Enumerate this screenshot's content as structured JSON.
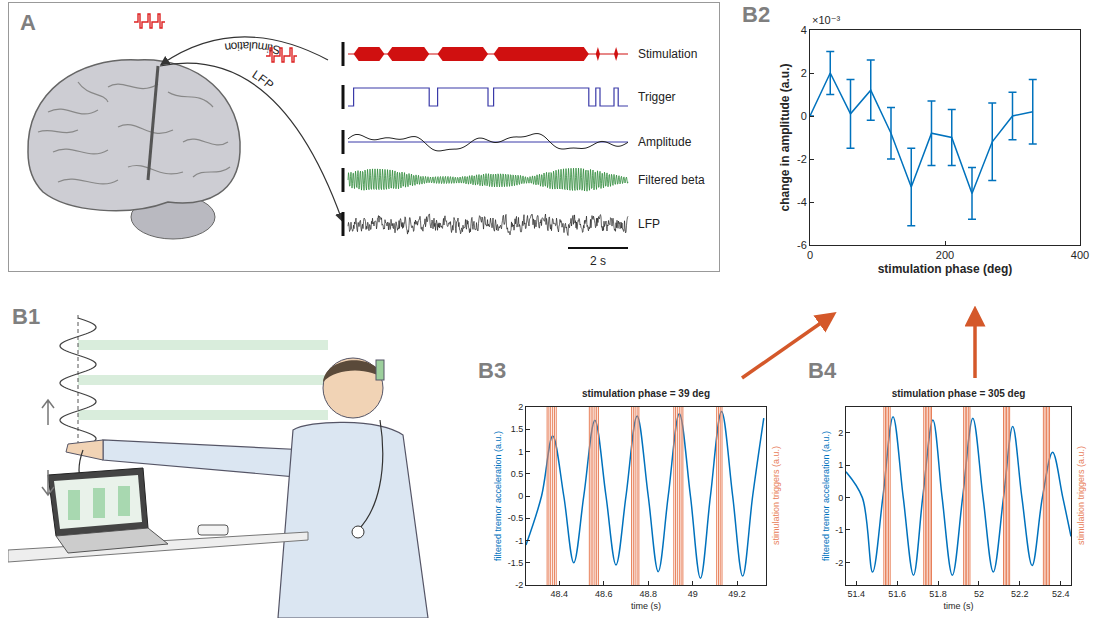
{
  "figure": {
    "A": {
      "letter": "A",
      "wire_labels": [
        "Stimulation",
        "LFP"
      ],
      "trace_labels": [
        "Stimulation",
        "Trigger",
        "Amplitude",
        "Filtered beta",
        "LFP"
      ],
      "scale_bar": "2 s"
    },
    "B1": {
      "letter": "B1"
    }
  },
  "chart_data": [
    {
      "panel": "B2",
      "type": "line",
      "x_label": "stimulation phase (deg)",
      "y_label": "change in amplitude (a.u.)",
      "y_multiplier": "×10⁻³",
      "x": [
        0,
        30,
        60,
        90,
        120,
        150,
        180,
        210,
        240,
        270,
        300,
        330
      ],
      "series": [
        {
          "color": "#0072BD",
          "line_style": "solid",
          "values": [
            0,
            2.0,
            0.1,
            1.2,
            -0.8,
            -3.3,
            -0.8,
            -1.0,
            -3.6,
            -1.2,
            0.0,
            0.2
          ],
          "error": [
            0,
            1.0,
            1.6,
            1.4,
            1.2,
            1.8,
            1.5,
            1.3,
            1.2,
            1.8,
            1.1,
            1.5
          ]
        }
      ],
      "xlim": [
        0,
        400
      ],
      "xticks": [
        0,
        200,
        400
      ],
      "ylim": [
        -6,
        4
      ],
      "yticks": [
        -6,
        -4,
        -2,
        0,
        2,
        4
      ],
      "grid": false
    },
    {
      "panel": "B3",
      "type": "line",
      "title": "stimulation phase = 39 deg",
      "x_label": "time (s)",
      "y_label": "filtered tremor acceleration (a.u.)",
      "y2_label": "stimulation triggers (a.u.)",
      "x": [
        48.25,
        48.32,
        48.37,
        48.42,
        48.465,
        48.51,
        48.56,
        48.61,
        48.655,
        48.7,
        48.75,
        48.8,
        48.845,
        48.89,
        48.94,
        48.99,
        49.035,
        49.08,
        49.13,
        49.18,
        49.225,
        49.27,
        49.32
      ],
      "series": [
        {
          "color": "#0072BD",
          "line_style": "smooth",
          "values": [
            -1.1,
            0,
            1.35,
            0,
            -1.5,
            0,
            1.7,
            0,
            -1.55,
            0,
            1.8,
            0,
            -1.7,
            0,
            1.85,
            0,
            -1.85,
            0,
            1.9,
            0,
            -1.8,
            0,
            1.75
          ]
        }
      ],
      "triggers": {
        "color": "#E8805A",
        "x": [
          48.345,
          48.353,
          48.361,
          48.37,
          48.378,
          48.386,
          48.535,
          48.543,
          48.551,
          48.56,
          48.568,
          48.576,
          48.725,
          48.733,
          48.741,
          48.75,
          48.758,
          48.915,
          48.923,
          48.931,
          48.94,
          48.948,
          48.956,
          49.108,
          49.116,
          49.124,
          49.132
        ]
      },
      "xlim": [
        48.25,
        49.33
      ],
      "xticks": [
        48.4,
        48.6,
        48.8,
        49,
        49.2
      ],
      "ylim": [
        -2,
        2
      ],
      "yticks": [
        -2,
        -1.5,
        -1,
        -0.5,
        0,
        0.5,
        1,
        1.5,
        2
      ],
      "grid": false
    },
    {
      "panel": "B4",
      "type": "line",
      "title": "stimulation phase = 305 deg",
      "x_label": "time (s)",
      "y_label": "filtered tremor acceleration (a.u.)",
      "y2_label": "stimulation triggers (a.u.)",
      "x": [
        51.35,
        51.43,
        51.48,
        51.53,
        51.58,
        51.63,
        51.68,
        51.725,
        51.775,
        51.82,
        51.87,
        51.92,
        51.97,
        52.02,
        52.07,
        52.12,
        52.165,
        52.21,
        52.26,
        52.31,
        52.36,
        52.41,
        52.45
      ],
      "series": [
        {
          "color": "#0072BD",
          "line_style": "smooth",
          "values": [
            0.8,
            0,
            -2.3,
            0,
            2.5,
            0,
            -2.4,
            0,
            2.4,
            0,
            -2.4,
            0,
            2.45,
            0,
            -2.3,
            0,
            2.2,
            0,
            -2.1,
            0,
            1.4,
            0,
            -1.2
          ]
        }
      ],
      "triggers": {
        "color": "#E8805A",
        "x": [
          51.535,
          51.543,
          51.55,
          51.558,
          51.566,
          51.73,
          51.738,
          51.745,
          51.753,
          51.761,
          51.768,
          51.925,
          51.933,
          51.94,
          51.948,
          51.956,
          52.12,
          52.128,
          52.135,
          52.143,
          52.15,
          52.315,
          52.323,
          52.33,
          52.338,
          52.345
        ]
      },
      "xlim": [
        51.35,
        52.45
      ],
      "xticks": [
        51.4,
        51.6,
        51.8,
        52,
        52.2,
        52.4
      ],
      "ylim": [
        -2.7,
        2.8
      ],
      "yticks": [
        -2,
        -1,
        0,
        1,
        2
      ],
      "grid": false
    }
  ]
}
